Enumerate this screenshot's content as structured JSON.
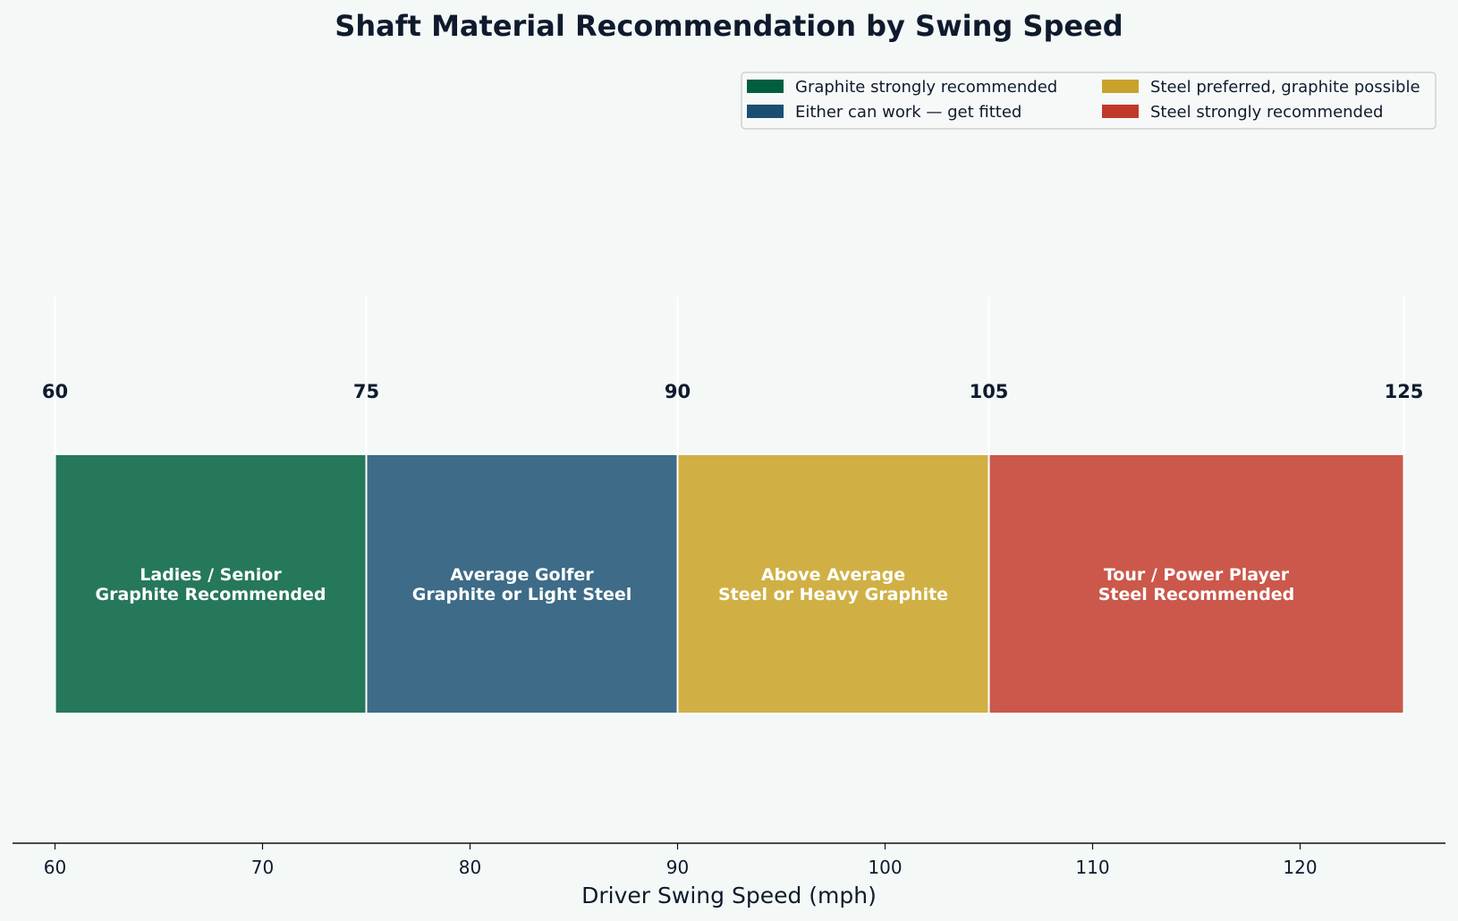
{
  "chart_data": {
    "type": "bar",
    "orientation": "horizontal-ranges",
    "title": "Shaft Material Recommendation by Swing Speed",
    "xlabel": "Driver Swing Speed (mph)",
    "xlim": [
      58,
      127
    ],
    "xticks": [
      "60",
      "70",
      "80",
      "90",
      "100",
      "110",
      "120"
    ],
    "boundaries": [
      "60",
      "75",
      "90",
      "105",
      "125"
    ],
    "grid": false,
    "legend_position": "top-right",
    "segments": [
      {
        "start": 60,
        "end": 75,
        "line1": "Ladies / Senior",
        "line2": "Graphite Recommended",
        "color": "#26785b"
      },
      {
        "start": 75,
        "end": 90,
        "line1": "Average Golfer",
        "line2": "Graphite or Light Steel",
        "color": "#3d6b88"
      },
      {
        "start": 90,
        "end": 105,
        "line1": "Above Average",
        "line2": "Steel or Heavy Graphite",
        "color": "#d0b045"
      },
      {
        "start": 105,
        "end": 125,
        "line1": "Tour / Power Player",
        "line2": "Steel Recommended",
        "color": "#cb584b"
      }
    ],
    "legend": [
      {
        "label": "Graphite strongly recommended",
        "color": "#005e40"
      },
      {
        "label": "Steel preferred, graphite possible",
        "color": "#c9a22e"
      },
      {
        "label": "Either can work — get fitted",
        "color": "#1b4f72"
      },
      {
        "label": "Steel strongly recommended",
        "color": "#c0392b"
      }
    ]
  }
}
